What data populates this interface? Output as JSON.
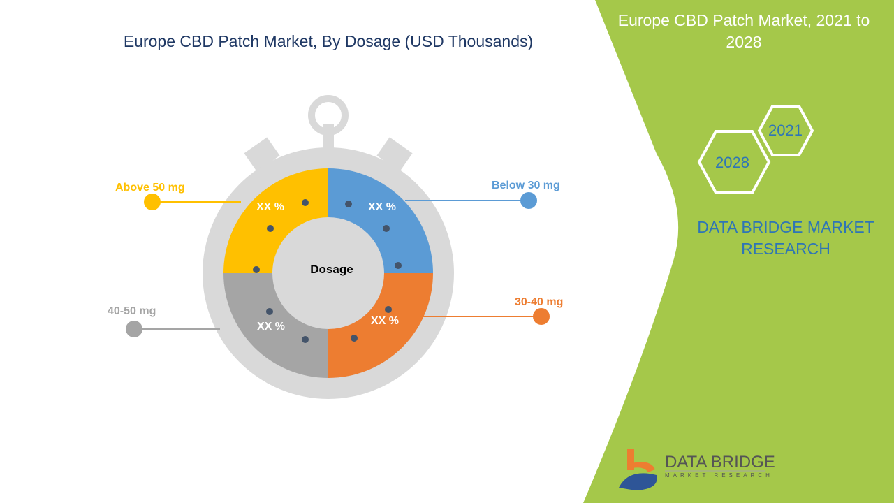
{
  "title": "Europe CBD Patch Market, By Dosage (USD Thousands)",
  "side_panel": {
    "title": "Europe CBD Patch Market, 2021 to 2028",
    "hex_years": [
      "2021",
      "2028"
    ],
    "brand": "DATA BRIDGE MARKET RESEARCH",
    "accent_color": "#a5c84a"
  },
  "logo": {
    "name": "DATA BRIDGE",
    "tagline": "MARKET RESEARCH"
  },
  "chart_data": {
    "type": "pie",
    "center_label": "Dosage",
    "slices": [
      {
        "label": "Below 30 mg",
        "value_label": "XX %",
        "color": "#5b9bd5"
      },
      {
        "label": "30-40 mg",
        "value_label": "XX %",
        "color": "#ed7d31"
      },
      {
        "label": "40-50 mg",
        "value_label": "XX %",
        "color": "#a5a5a5"
      },
      {
        "label": "Above 50 mg",
        "value_label": "XX %",
        "color": "#ffc000"
      }
    ]
  }
}
